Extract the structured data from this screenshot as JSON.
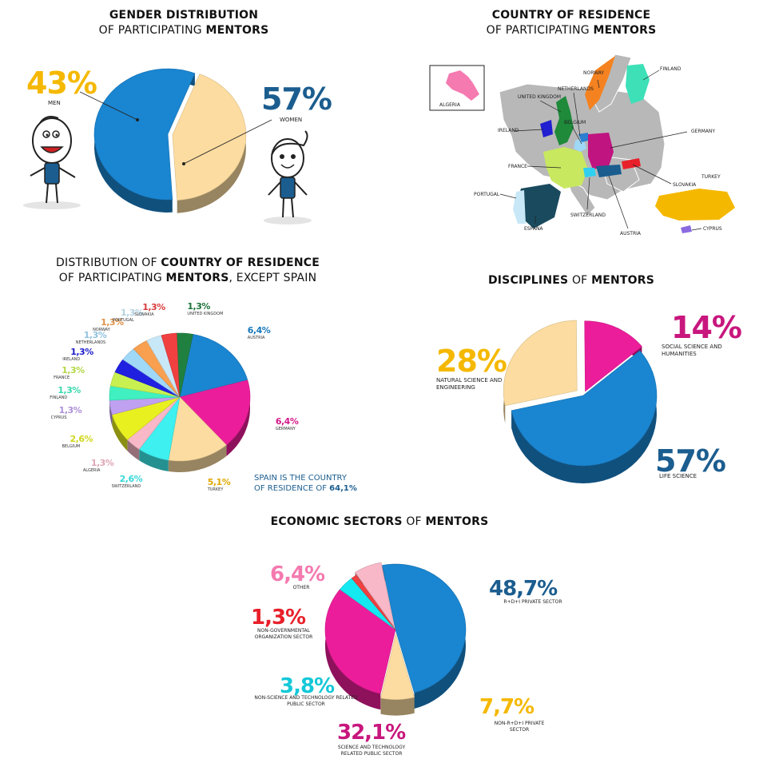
{
  "colors": {
    "yellow": "#f5b800",
    "blue": "#1b5d8f",
    "magenta": "#c8167d",
    "red": "#e8202a",
    "green": "#2aa24a",
    "cyan": "#14c8d8",
    "pie_blue": "#1a85d0",
    "pie_tan": "#fcdca0",
    "pie_pink": "#ec1d9a"
  },
  "gender": {
    "title_line1": "GENDER DISTRIBUTION",
    "title_line2_a": "OF PARTICIPATING ",
    "title_line2_b": "MENTORS",
    "men_pct": "43%",
    "men_label": "MEN",
    "women_pct": "57%",
    "women_label": "WOMEN"
  },
  "country_map": {
    "title_line1": "COUNTRY OF RESIDENCE",
    "title_line2_a": "OF PARTICIPATING ",
    "title_line2_b": "MENTORS",
    "labels": {
      "algeria": "ALGERIA",
      "norway": "NORWAY",
      "finland": "FINLAND",
      "netherlands": "NETHERLANDS",
      "united_kingdom": "UNITED KINGDOM",
      "belgium": "BELGIUM",
      "ireland": "IRELAND",
      "germany": "GERMANY",
      "france": "FRANCE",
      "slovakia": "SLOVAKIA",
      "turkey": "TURKEY",
      "portugal": "PORTUGAL",
      "switzerland": "SWITZERLAND",
      "espana": "ESPAÑA",
      "austria": "AUSTRIA",
      "cyprus": "CYPRUS"
    }
  },
  "country_pie": {
    "title_line1_a": "DISTRIBUTION OF ",
    "title_line1_b": "COUNTRY OF RESIDENCE",
    "title_line2_a": "OF PARTICIPATING ",
    "title_line2_b": "MENTORS",
    "title_line2_c": ", EXCEPT SPAIN",
    "note_line1": "SPAIN IS THE COUNTRY",
    "note_line2_a": "OF RESIDENCE OF ",
    "note_line2_b": "64,1%"
  },
  "disciplines": {
    "title_a": "DISCIPLINES",
    "title_b": " OF ",
    "title_c": "MENTORS"
  },
  "economic": {
    "title_a": "ECONOMIC SECTORS",
    "title_b": " OF ",
    "title_c": "MENTORS"
  },
  "chart_data": [
    {
      "type": "pie",
      "title": "GENDER DISTRIBUTION OF PARTICIPATING MENTORS",
      "categories": [
        "MEN",
        "WOMEN"
      ],
      "values": [
        43,
        57
      ],
      "labels": [
        "43%",
        "57%"
      ],
      "colors": [
        "#fcdca0",
        "#1a85d0"
      ]
    },
    {
      "type": "pie",
      "title": "DISTRIBUTION OF COUNTRY OF RESIDENCE OF PARTICIPATING MENTORS, EXCEPT SPAIN",
      "categories": [
        "AUSTRIA",
        "GERMANY",
        "TURKEY",
        "SWITZERLAND",
        "ALGERIA",
        "BELGIUM",
        "CYPRUS",
        "FINLAND",
        "FRANCE",
        "IRELAND",
        "NETHERLANDS",
        "NORWAY",
        "PORTUGAL",
        "SLOVAKIA",
        "UNITED KINGDOM"
      ],
      "values": [
        6.4,
        6.4,
        5.1,
        2.6,
        1.3,
        2.6,
        1.3,
        1.3,
        1.3,
        1.3,
        1.3,
        1.3,
        1.3,
        1.3,
        1.3
      ],
      "labels": [
        "6,4%",
        "6,4%",
        "5,1%",
        "2,6%",
        "1,3%",
        "2,6%",
        "1,3%",
        "1,3%",
        "1,3%",
        "1,3%",
        "1,3%",
        "1,3%",
        "1,3%",
        "1,3%",
        "1,3%"
      ],
      "colors": [
        "#1a85d0",
        "#ec1d9a",
        "#fcdca0",
        "#3ef0f0",
        "#f8b8c8",
        "#e8f020",
        "#c0a0f0",
        "#40f0c0",
        "#c8f050",
        "#2020e0",
        "#a0d8f8",
        "#f8a050",
        "#c8e8f8",
        "#f04040",
        "#208040"
      ]
    },
    {
      "type": "pie",
      "title": "DISCIPLINES OF MENTORS",
      "categories": [
        "LIFE SCIENCE",
        "NATURAL SCIENCE AND ENGINEERING",
        "SOCIAL SCIENCE AND HUMANITIES"
      ],
      "values": [
        57,
        28,
        14
      ],
      "labels": [
        "57%",
        "28%",
        "14%"
      ],
      "colors": [
        "#1a85d0",
        "#fcdca0",
        "#ec1d9a"
      ]
    },
    {
      "type": "pie",
      "title": "ECONOMIC SECTORS OF MENTORS",
      "categories": [
        "R+D+I PRIVATE SECTOR",
        "NON-R+D+I PRIVATE SECTOR",
        "SCIENCE AND TECHNOLOGY RELATED PUBLIC SECTOR",
        "NON-SCIENCE AND TECHNOLOGY RELATED PUBLIC SECTOR",
        "NON-GOVERNMENTAL ORGANIZATION SECTOR",
        "OTHER"
      ],
      "values": [
        48.7,
        7.7,
        32.1,
        3.8,
        1.3,
        6.4
      ],
      "labels": [
        "48,7%",
        "7,7%",
        "32,1%",
        "3,8%",
        "1,3%",
        "6,4%"
      ],
      "colors": [
        "#1a85d0",
        "#fcdca0",
        "#ec1d9a",
        "#14e8f0",
        "#f04040",
        "#f8b8c8"
      ]
    }
  ]
}
